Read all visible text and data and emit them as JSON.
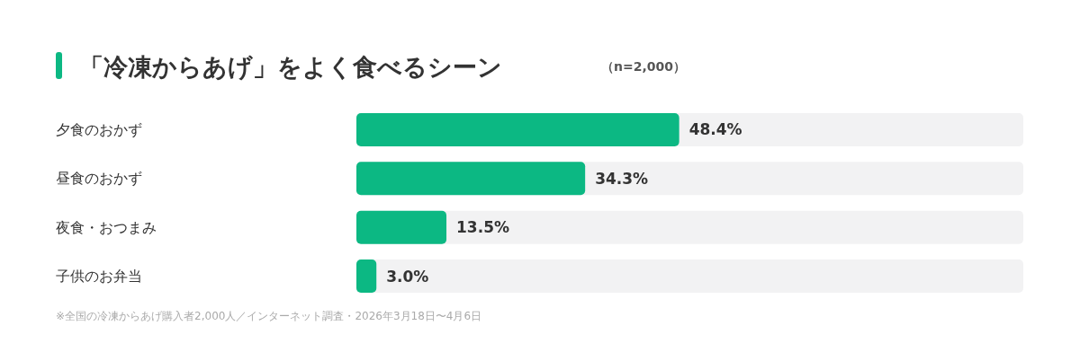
{
  "chart_data": {
    "type": "bar",
    "orientation": "horizontal",
    "title": "「冷凍からあげ」をよく食べるシーン",
    "subtitle": "（n=2,000）",
    "categories": [
      "夕食のおかず",
      "昼食のおかず",
      "夜食・おつまみ",
      "子供のお弁当"
    ],
    "values": [
      48.4,
      34.3,
      13.5,
      3.0
    ],
    "value_labels": [
      "48.4%",
      "34.3%",
      "13.5%",
      "3.0%"
    ],
    "color": "#0cb883",
    "xlim": [
      0,
      100
    ],
    "tick_labels": "y",
    "annotations": [
      "※全国の冷凍からあげ購入者2,000人／インターネット調査・2026年3月18日〜4月6日"
    ]
  }
}
